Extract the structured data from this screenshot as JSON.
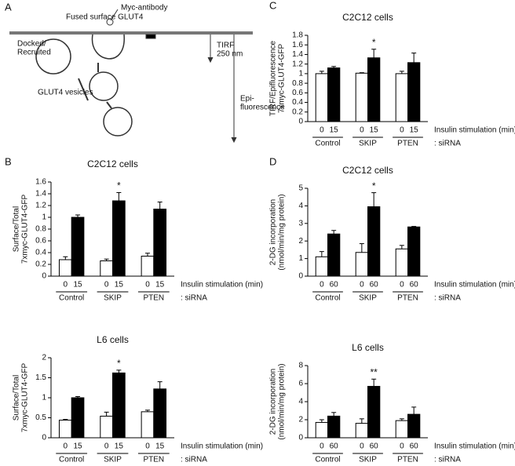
{
  "panel_a": {
    "letter": "A",
    "myc": "Myc-antibody",
    "fused": "Fused surface GLUT4",
    "docked": [
      "Docked/",
      "Recruited"
    ],
    "tirf": [
      "TIRF",
      "250 nm"
    ],
    "vesicles": "GLUT4 vesicles",
    "epi": [
      "Epi-",
      "fluorescence"
    ]
  },
  "chart_data": [
    {
      "type": "bar",
      "panel": "C",
      "title": "C2C12 cells",
      "y_label": [
        "TIRF/Epifluorescence",
        "7xmyc-GLUT4-GFP"
      ],
      "categories": [
        "0",
        "15",
        "0",
        "15",
        "0",
        "15"
      ],
      "groups": [
        "Control",
        "SKIP",
        "PTEN"
      ],
      "values": [
        1.0,
        1.12,
        1.01,
        1.33,
        1.0,
        1.23
      ],
      "errors": [
        0.05,
        0.03,
        0.01,
        0.18,
        0.05,
        0.2
      ],
      "value_annotations": [
        null,
        null,
        null,
        "*",
        null,
        null
      ],
      "bar_colors": [
        "#ffffff",
        "#000000"
      ],
      "x_label": "Insulin stimulation (min)",
      "group_label": ": siRNA",
      "ylim": [
        0,
        1.8
      ],
      "yticks": [
        0,
        0.2,
        0.4,
        0.6,
        0.8,
        1,
        1.2,
        1.4,
        1.6,
        1.8
      ]
    },
    {
      "type": "bar",
      "panel": "B",
      "title": "C2C12 cells",
      "y_label": [
        "Surface/Total",
        "7xmyc-GLUT4-GFP"
      ],
      "categories": [
        "0",
        "15",
        "0",
        "15",
        "0",
        "15"
      ],
      "groups": [
        "Control",
        "SKIP",
        "PTEN"
      ],
      "values": [
        0.28,
        1.0,
        0.26,
        1.28,
        0.34,
        1.14
      ],
      "errors": [
        0.05,
        0.04,
        0.03,
        0.14,
        0.05,
        0.12
      ],
      "value_annotations": [
        null,
        null,
        null,
        "*",
        null,
        null
      ],
      "bar_colors": [
        "#ffffff",
        "#000000"
      ],
      "x_label": "Insulin stimulation (min)",
      "group_label": ": siRNA",
      "ylim": [
        0,
        1.6
      ],
      "yticks": [
        0,
        0.2,
        0.4,
        0.6,
        0.8,
        1,
        1.2,
        1.4,
        1.6
      ]
    },
    {
      "type": "bar",
      "title": "L6 cells",
      "y_label": [
        "Surface/Total",
        "7xmyc-GLUT4-GFP"
      ],
      "categories": [
        "0",
        "15",
        "0",
        "15",
        "0",
        "15"
      ],
      "groups": [
        "Control",
        "SKIP",
        "PTEN"
      ],
      "values": [
        0.44,
        1.0,
        0.54,
        1.62,
        0.65,
        1.22
      ],
      "errors": [
        0.02,
        0.03,
        0.1,
        0.07,
        0.04,
        0.18
      ],
      "value_annotations": [
        null,
        null,
        null,
        "*",
        null,
        null
      ],
      "bar_colors": [
        "#ffffff",
        "#000000"
      ],
      "x_label": "Insulin stimulation (min)",
      "group_label": ": siRNA",
      "ylim": [
        0,
        2
      ],
      "yticks": [
        0,
        0.5,
        1,
        1.5,
        2
      ]
    },
    {
      "type": "bar",
      "panel": "D",
      "title": "C2C12 cells",
      "y_label": [
        "2-DG incorporation",
        "(nmol/min/mg protein)"
      ],
      "categories": [
        "0",
        "60",
        "0",
        "60",
        "0",
        "60"
      ],
      "groups": [
        "Control",
        "SKIP",
        "PTEN"
      ],
      "values": [
        1.1,
        2.4,
        1.35,
        3.95,
        1.55,
        2.8
      ],
      "errors": [
        0.3,
        0.2,
        0.5,
        0.8,
        0.2,
        0.03
      ],
      "value_annotations": [
        null,
        null,
        null,
        "*",
        null,
        null
      ],
      "bar_colors": [
        "#ffffff",
        "#000000"
      ],
      "x_label": "Insulin stimulation (min)",
      "group_label": ": siRNA",
      "ylim": [
        0,
        5
      ],
      "yticks": [
        0,
        1,
        2,
        3,
        4,
        5
      ]
    },
    {
      "type": "bar",
      "title": "L6 cells",
      "y_label": [
        "2-DG incorporation",
        "(nmol/min/mg protein)"
      ],
      "categories": [
        "0",
        "60",
        "0",
        "60",
        "0",
        "60"
      ],
      "groups": [
        "Control",
        "SKIP",
        "PTEN"
      ],
      "values": [
        1.7,
        2.4,
        1.6,
        5.7,
        1.9,
        2.6
      ],
      "errors": [
        0.3,
        0.4,
        0.5,
        0.8,
        0.2,
        0.8
      ],
      "value_annotations": [
        null,
        null,
        null,
        "**",
        null,
        null
      ],
      "bar_colors": [
        "#ffffff",
        "#000000"
      ],
      "x_label": "Insulin stimulation (min)",
      "group_label": ": siRNA",
      "ylim": [
        0,
        8
      ],
      "yticks": [
        0,
        2,
        4,
        6,
        8
      ]
    }
  ]
}
